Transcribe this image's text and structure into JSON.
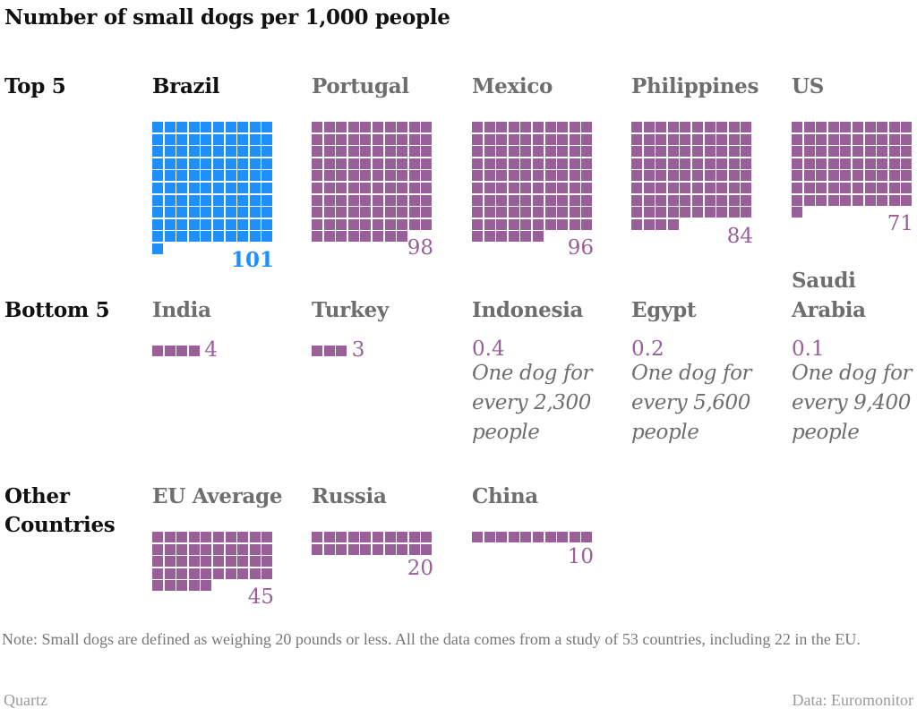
{
  "chart_data": {
    "type": "waffle",
    "title": "Number of small dogs per 1,000 people",
    "unit": "small dogs per 1,000 people",
    "colors": {
      "highlight": "#1e8ffb",
      "default": "#985f99",
      "label_text": "#6e6e6e",
      "highlight_label": "#111111"
    },
    "groups": [
      {
        "label": "Top 5",
        "items": [
          {
            "country": "Brazil",
            "value": 101,
            "value_label": "101",
            "highlight": true
          },
          {
            "country": "Portugal",
            "value": 98,
            "value_label": "98",
            "highlight": false
          },
          {
            "country": "Mexico",
            "value": 96,
            "value_label": "96",
            "highlight": false
          },
          {
            "country": "Philippines",
            "value": 84,
            "value_label": "84",
            "highlight": false
          },
          {
            "country": "US",
            "value": 71,
            "value_label": "71",
            "highlight": false
          }
        ]
      },
      {
        "label": "Bottom 5",
        "items": [
          {
            "country": "India",
            "value": 4,
            "value_label": "4",
            "highlight": false
          },
          {
            "country": "Turkey",
            "value": 3,
            "value_label": "3",
            "highlight": false
          },
          {
            "country": "Indonesia",
            "value": 0.4,
            "value_label": "0.4",
            "note": [
              "One dog for",
              "every 2,300",
              "people"
            ],
            "highlight": false
          },
          {
            "country": "Egypt",
            "value": 0.2,
            "value_label": "0.2",
            "note": [
              "One dog for",
              "every 5,600",
              "people"
            ],
            "highlight": false
          },
          {
            "country": "Saudi Arabia",
            "country_lines": [
              "Saudi",
              "Arabia"
            ],
            "value": 0.1,
            "value_label": "0.1",
            "note": [
              "One dog for",
              "every 9,400",
              "people"
            ],
            "highlight": false
          }
        ]
      },
      {
        "label": "Other Countries",
        "label_lines": [
          "Other",
          "Countries"
        ],
        "items": [
          {
            "country": "EU Average",
            "value": 45,
            "value_label": "45",
            "highlight": false
          },
          {
            "country": "Russia",
            "value": 20,
            "value_label": "20",
            "highlight": false
          },
          {
            "country": "China",
            "value": 10,
            "value_label": "10",
            "highlight": false
          }
        ]
      }
    ]
  },
  "note": "Note: Small dogs are defined as weighing 20 pounds or less. All the data comes from a study of 53 countries, including 22 in the EU.",
  "footer": {
    "left": "Quartz",
    "right": "Data: Euromonitor"
  }
}
